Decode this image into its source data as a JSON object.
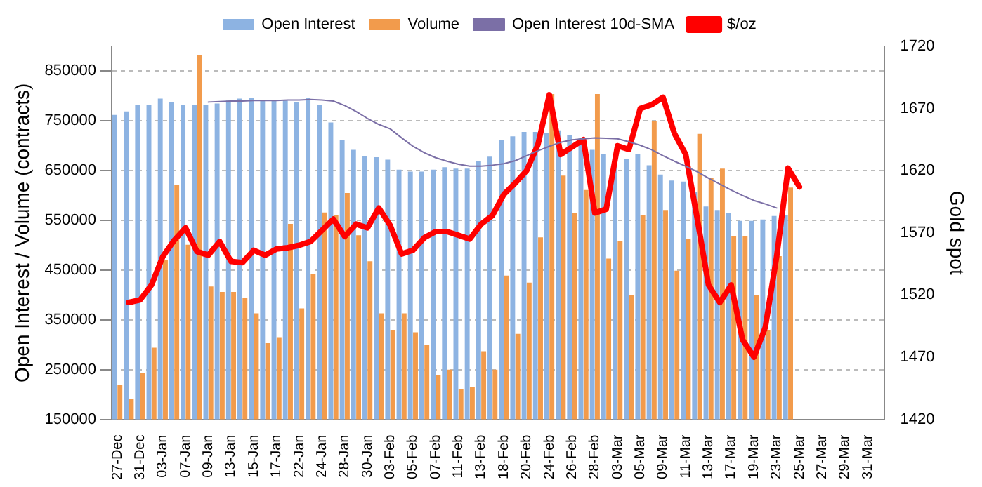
{
  "chart_data": {
    "type": "bar",
    "xlabel": null,
    "ylabel": "Open Interest / Volume (contracts)",
    "y2label": "Gold spot",
    "categories": [
      "27-Dec",
      null,
      "31-Dec",
      null,
      "03-Jan",
      null,
      "07-Jan",
      null,
      "09-Jan",
      null,
      "13-Jan",
      null,
      "15-Jan",
      null,
      "17-Jan",
      null,
      "22-Jan",
      null,
      "24-Jan",
      null,
      "28-Jan",
      null,
      "30-Jan",
      null,
      "03-Feb",
      null,
      "05-Feb",
      null,
      "07-Feb",
      null,
      "11-Feb",
      null,
      "13-Feb",
      null,
      "18-Feb",
      null,
      "20-Feb",
      null,
      "24-Feb",
      null,
      "26-Feb",
      null,
      "28-Feb",
      null,
      "03-Mar",
      null,
      "05-Mar",
      null,
      "09-Mar",
      null,
      "11-Mar",
      null,
      "13-Mar",
      null,
      "17-Mar",
      null,
      "19-Mar",
      null,
      "23-Mar",
      null,
      "25-Mar",
      null,
      "27-Mar",
      null,
      "29-Mar",
      null,
      "31-Mar",
      null
    ],
    "series": [
      {
        "name": "Open Interest",
        "color": "#8db3e2",
        "values": [
          762000,
          769000,
          783000,
          783000,
          795000,
          788000,
          783000,
          783000,
          783000,
          785000,
          791000,
          795000,
          797000,
          791000,
          791000,
          791000,
          787000,
          797000,
          783000,
          747000,
          712000,
          692000,
          680000,
          677000,
          672000,
          652000,
          648000,
          648000,
          652000,
          657000,
          654000,
          654000,
          670000,
          678000,
          712000,
          719000,
          728000,
          728000,
          726000,
          731000,
          721000,
          716000,
          692000,
          683000,
          659000,
          673000,
          683000,
          661000,
          642000,
          630000,
          628000,
          607000,
          578000,
          571000,
          564000,
          549000,
          549000,
          552000,
          559000,
          560000,
          null,
          null,
          null,
          null,
          null,
          null,
          null,
          null
        ]
      },
      {
        "name": "Volume",
        "color": "#f29b4c",
        "values": [
          220000,
          191000,
          244000,
          294000,
          471000,
          621000,
          501000,
          883000,
          417000,
          406000,
          406000,
          394000,
          363000,
          303000,
          315000,
          543000,
          373000,
          442000,
          566000,
          560000,
          605000,
          520000,
          468000,
          363000,
          330000,
          363000,
          325000,
          299000,
          239000,
          250000,
          210000,
          215000,
          287000,
          250000,
          439000,
          322000,
          425000,
          516000,
          804000,
          640000,
          565000,
          611000,
          804000,
          473000,
          508000,
          399000,
          560000,
          750000,
          571000,
          449000,
          513000,
          724000,
          635000,
          654000,
          519000,
          519000,
          399000,
          330000,
          478000,
          616000,
          null,
          null,
          null,
          null,
          null,
          null,
          null,
          null
        ]
      },
      {
        "name": "Open Interest 10d-SMA",
        "type": "line",
        "color": "#7b6fa6",
        "values": [
          null,
          null,
          null,
          null,
          null,
          null,
          null,
          null,
          788000,
          789000,
          790000,
          790000,
          791000,
          791000,
          791000,
          792000,
          792000,
          793000,
          792000,
          790000,
          781000,
          769000,
          755000,
          743000,
          734000,
          716000,
          699000,
          686000,
          676000,
          669000,
          663000,
          659000,
          659000,
          661000,
          664000,
          670000,
          680000,
          690000,
          699000,
          707000,
          712000,
          714000,
          716000,
          715000,
          714000,
          708000,
          701000,
          692000,
          680000,
          669000,
          659000,
          648000,
          635000,
          623000,
          611000,
          600000,
          590000,
          583000,
          575000,
          null,
          null,
          null,
          null,
          null,
          null,
          null,
          null,
          null
        ]
      },
      {
        "name": "$/oz",
        "type": "line",
        "axis": "y2",
        "color": "#ff0000",
        "values": [
          null,
          1514,
          1516,
          1528,
          1551,
          1564,
          1574,
          1555,
          1552,
          1563,
          1547,
          1546,
          1556,
          1552,
          1557,
          1558,
          1560,
          1563,
          1572,
          1581,
          1567,
          1577,
          1574,
          1590,
          1576,
          1553,
          1556,
          1566,
          1571,
          1571,
          1568,
          1565,
          1577,
          1584,
          1601,
          1610,
          1620,
          1641,
          1681,
          1633,
          1639,
          1645,
          1586,
          1589,
          1640,
          1637,
          1670,
          1673,
          1679,
          1650,
          1633,
          1582,
          1528,
          1514,
          1528,
          1484,
          1470,
          1494,
          1551,
          1622,
          1607,
          null,
          null,
          null,
          null,
          null,
          null,
          null
        ]
      }
    ],
    "ylim": [
      150000,
      900000
    ],
    "yticks": [
      150000,
      250000,
      350000,
      450000,
      550000,
      650000,
      750000,
      850000
    ],
    "y2lim": [
      1420,
      1720
    ],
    "y2ticks": [
      1420,
      1470,
      1520,
      1570,
      1620,
      1670,
      1720
    ],
    "grid": "y",
    "legend": "top",
    "marker": "none"
  }
}
